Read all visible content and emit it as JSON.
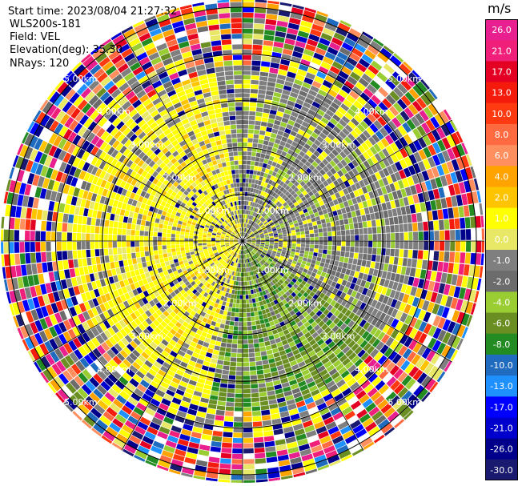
{
  "header": {
    "start_time": "Start time: 2023/08/04 21:27:32",
    "instrument": "WLS200s-181",
    "field": "Field: VEL",
    "elevation": "Elevation(deg): 35.30",
    "nrays": "NRays: 120"
  },
  "chart_data": {
    "type": "heatmap",
    "projection": "polar-ppi",
    "field": "VEL",
    "units": "m/s",
    "nrays": 120,
    "range_ring_labels": [
      "5.00km",
      "4.00km",
      "3.00km",
      "2.00km",
      "1.00km"
    ],
    "colorbar": {
      "label": "m/s",
      "ticks": [
        "26.0",
        "21.0",
        "17.0",
        "13.0",
        "10.0",
        "8.0",
        "6.0",
        "4.0",
        "2.0",
        "1.0",
        "0.0",
        "-1.0",
        "-2.0",
        "-4.0",
        "-6.0",
        "-8.0",
        "-10.0",
        "-13.0",
        "-17.0",
        "-21.0",
        "-26.0",
        "-30.0"
      ],
      "colors": [
        "#e8208f",
        "#f0207a",
        "#e30022",
        "#f41a0c",
        "#ff3a10",
        "#ff6a40",
        "#ff8f5e",
        "#ffa300",
        "#ffc400",
        "#ffff00",
        "#e8e866",
        "#7f7f7f",
        "#6c6c6c",
        "#9acd32",
        "#6b8e23",
        "#228b22",
        "#1f6bbf",
        "#1e90ff",
        "#0000ff",
        "#0000cd",
        "#00008b",
        "#191970"
      ]
    }
  }
}
